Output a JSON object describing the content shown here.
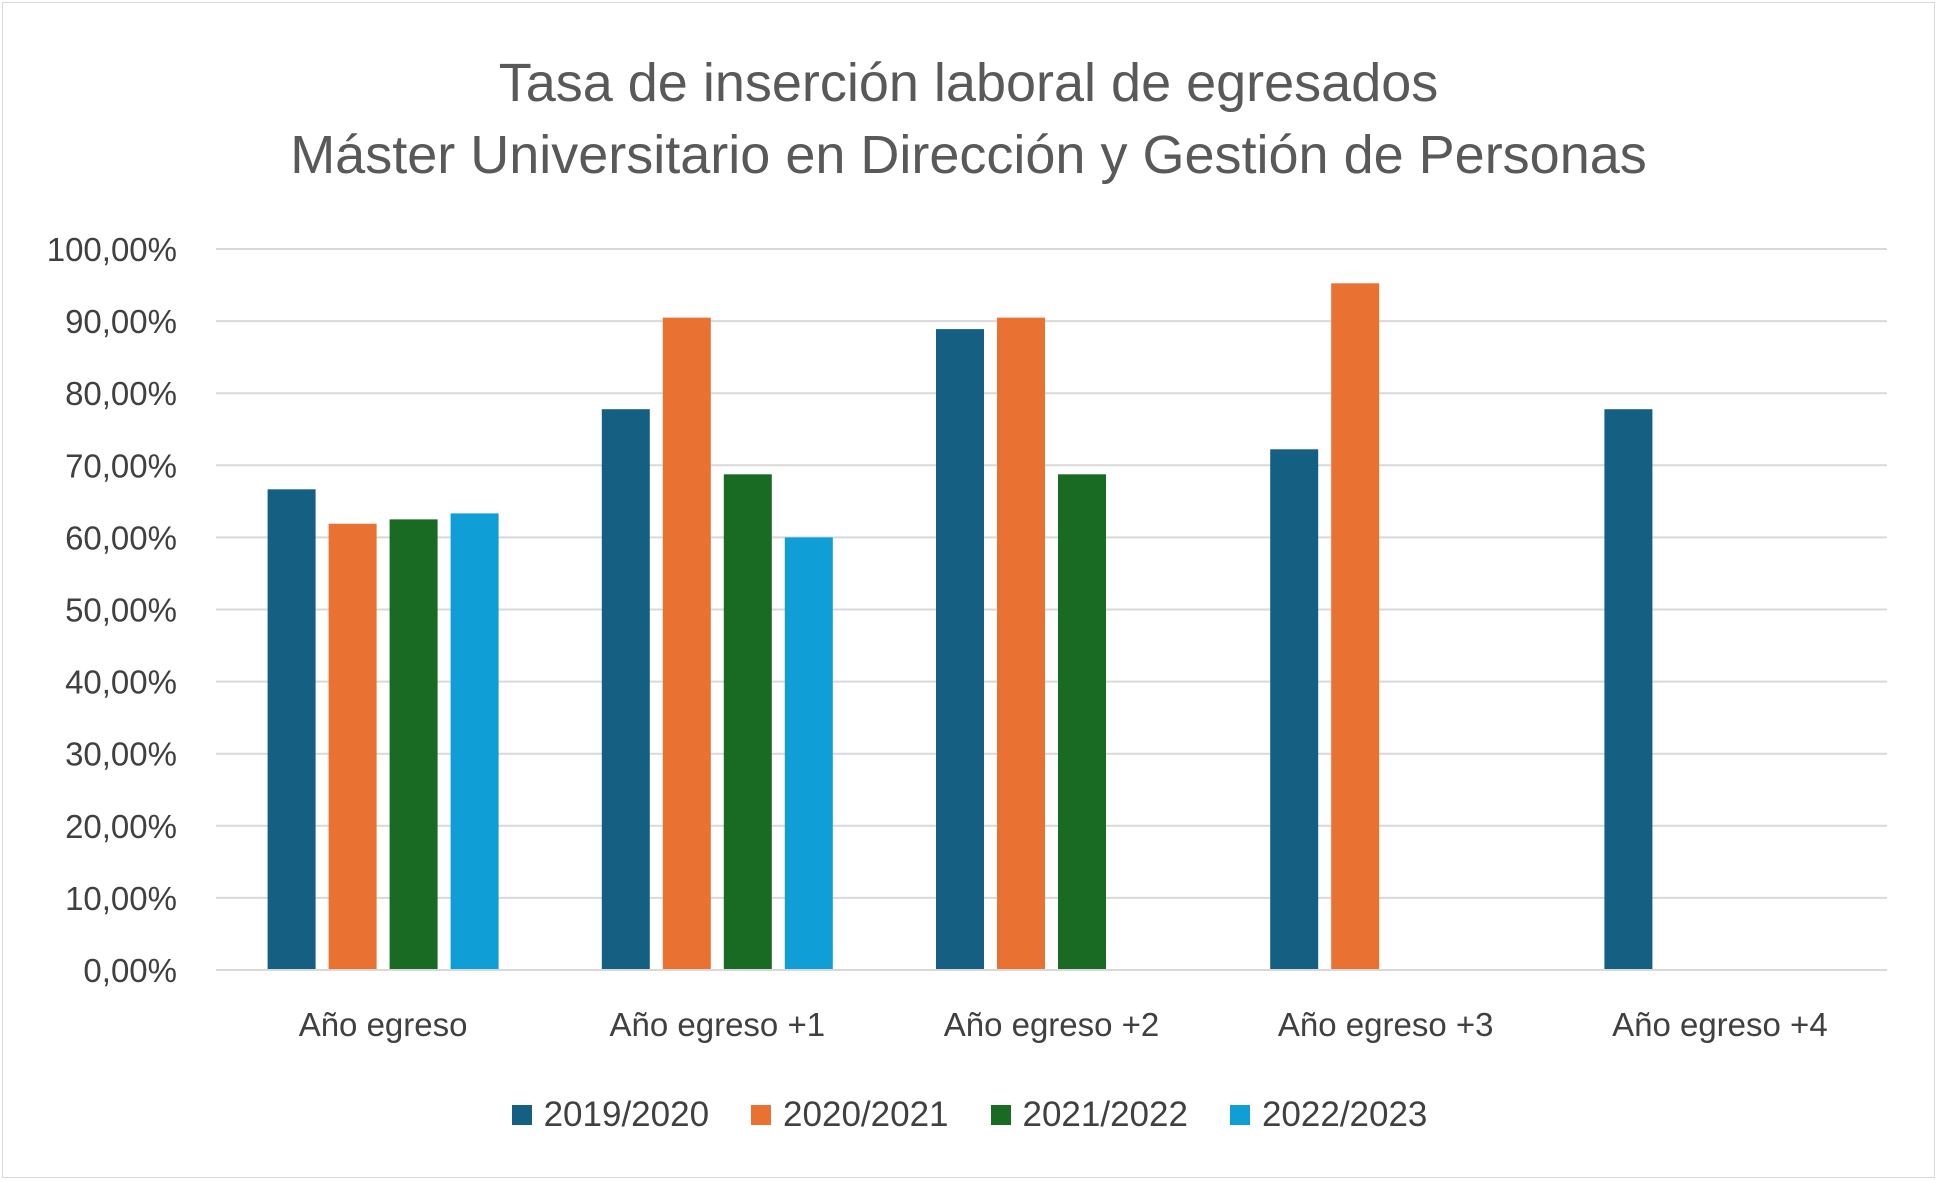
{
  "chart_data": {
    "type": "bar",
    "title": "Tasa de inserción laboral de egresados",
    "subtitle": "Máster Universitario en Dirección y Gestión de Personas",
    "categories": [
      "Año egreso",
      "Año egreso +1",
      "Año egreso +2",
      "Año egreso +3",
      "Año egreso +4"
    ],
    "series": [
      {
        "name": "2019/2020",
        "color": "#156082",
        "values": [
          66.67,
          77.78,
          88.89,
          72.22,
          77.78
        ]
      },
      {
        "name": "2020/2021",
        "color": "#E97132",
        "values": [
          61.9,
          90.48,
          90.48,
          95.24,
          null
        ]
      },
      {
        "name": "2021/2022",
        "color": "#196B24",
        "values": [
          62.5,
          68.75,
          68.75,
          null,
          null
        ]
      },
      {
        "name": "2022/2023",
        "color": "#0F9ED5",
        "values": [
          63.33,
          60.0,
          null,
          null,
          null
        ]
      }
    ],
    "ylim": [
      0,
      100
    ],
    "yticks": [
      {
        "value": 0,
        "label": "0,00%"
      },
      {
        "value": 10,
        "label": "10,00%"
      },
      {
        "value": 20,
        "label": "20,00%"
      },
      {
        "value": 30,
        "label": "30,00%"
      },
      {
        "value": 40,
        "label": "40,00%"
      },
      {
        "value": 50,
        "label": "50,00%"
      },
      {
        "value": 60,
        "label": "60,00%"
      },
      {
        "value": 70,
        "label": "70,00%"
      },
      {
        "value": 80,
        "label": "80,00%"
      },
      {
        "value": 90,
        "label": "90,00%"
      },
      {
        "value": 100,
        "label": "100,00%"
      }
    ],
    "xlabel": "",
    "ylabel": "",
    "grid": true,
    "legend_position": "bottom"
  }
}
